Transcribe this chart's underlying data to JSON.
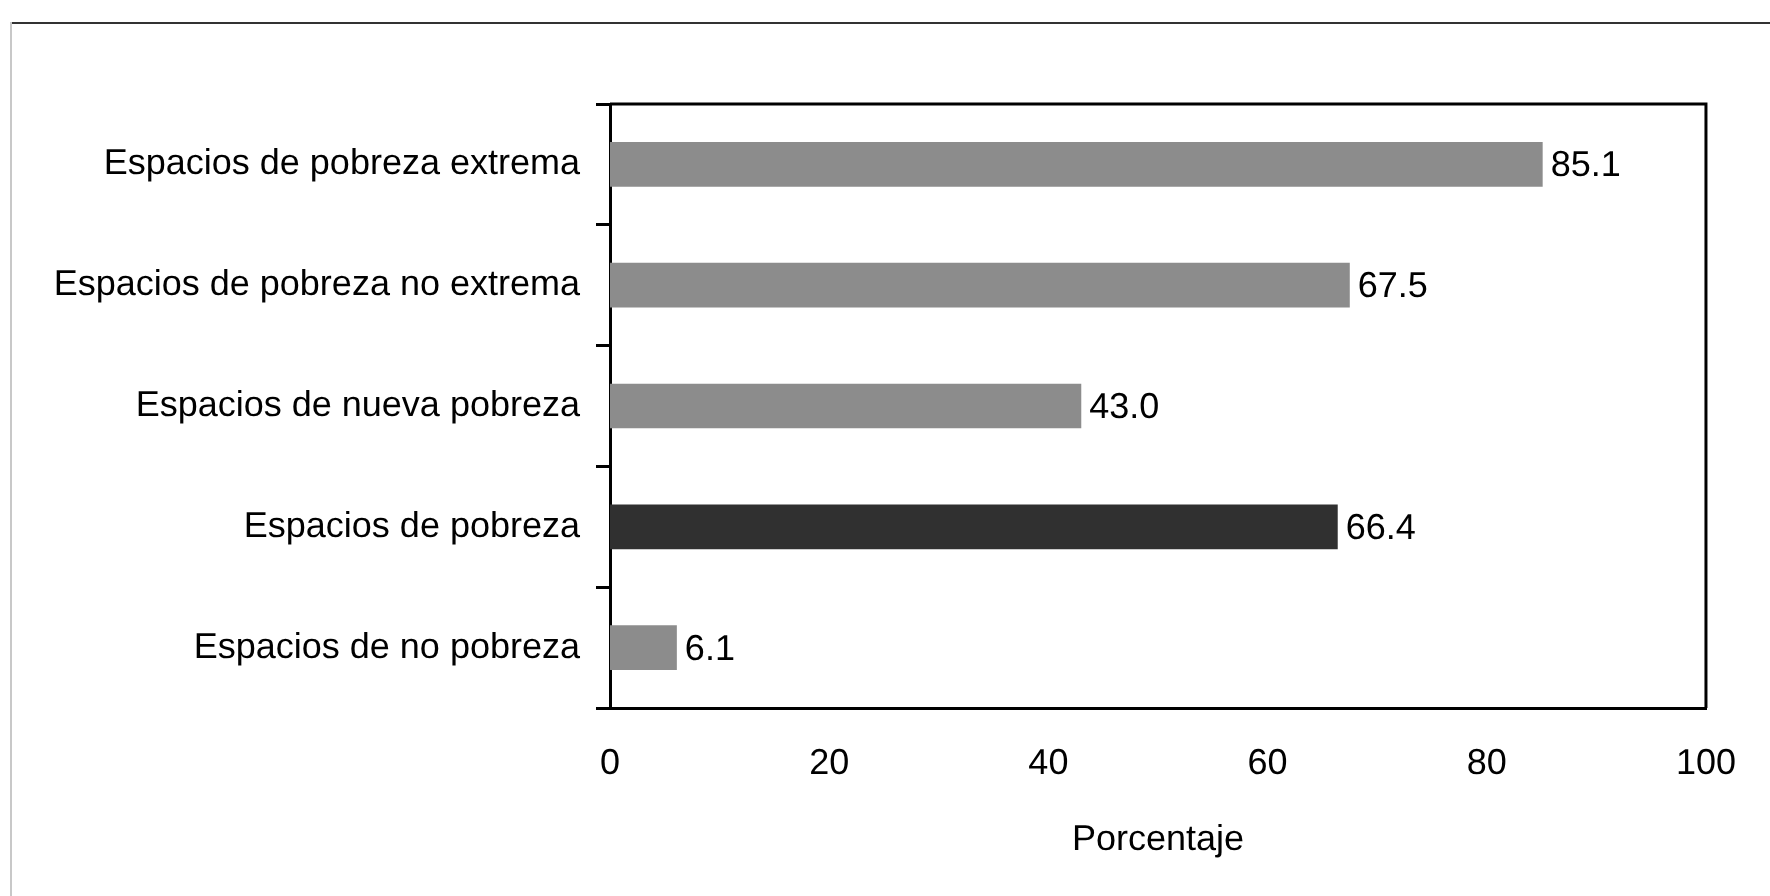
{
  "chart_data": {
    "type": "bar",
    "orientation": "horizontal",
    "categories": [
      "Espacios de pobreza extrema",
      "Espacios de pobreza no extrema",
      "Espacios de nueva pobreza",
      "Espacios de pobreza",
      "Espacios de no pobreza"
    ],
    "values": [
      85.1,
      67.5,
      43.0,
      66.4,
      6.1
    ],
    "colors": [
      "#8c8c8c",
      "#8c8c8c",
      "#8c8c8c",
      "#303030",
      "#8c8c8c"
    ],
    "value_labels": [
      "85.1",
      "67.5",
      "43.0",
      "66.4",
      "6.1"
    ],
    "xlim": [
      0,
      100
    ],
    "xticks": [
      0,
      20,
      40,
      60,
      80,
      100
    ],
    "xlabel": "Porcentaje",
    "grid": false,
    "legend": false
  }
}
